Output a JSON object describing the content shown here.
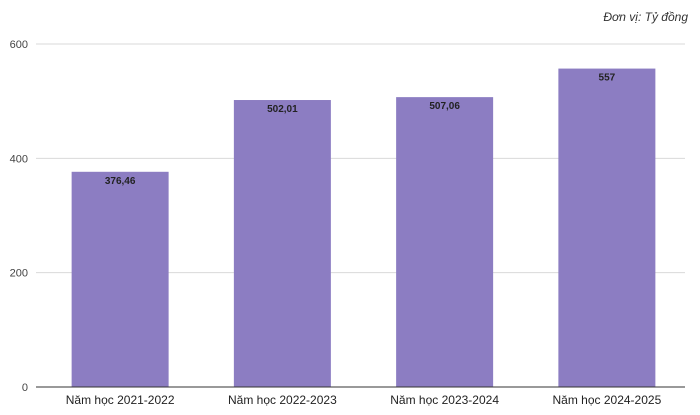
{
  "unit_label": "Đơn vị: Tỷ đồng",
  "colors": {
    "bar": "#8c7dc2",
    "grid": "#d9d9d9",
    "axis": "#333333",
    "text": "#222222"
  },
  "chart_data": {
    "type": "bar",
    "categories": [
      "Năm học 2021-2022",
      "Năm học 2022-2023",
      "Năm học 2023-2024",
      "Năm học 2024-2025"
    ],
    "values": [
      376.46,
      502.01,
      507.06,
      557
    ],
    "data_labels": [
      "376,46",
      "502,01",
      "507,06",
      "557"
    ],
    "ylim": [
      0,
      600
    ],
    "yticks": [
      0,
      200,
      400,
      600
    ],
    "grid": true,
    "legend": "none"
  }
}
